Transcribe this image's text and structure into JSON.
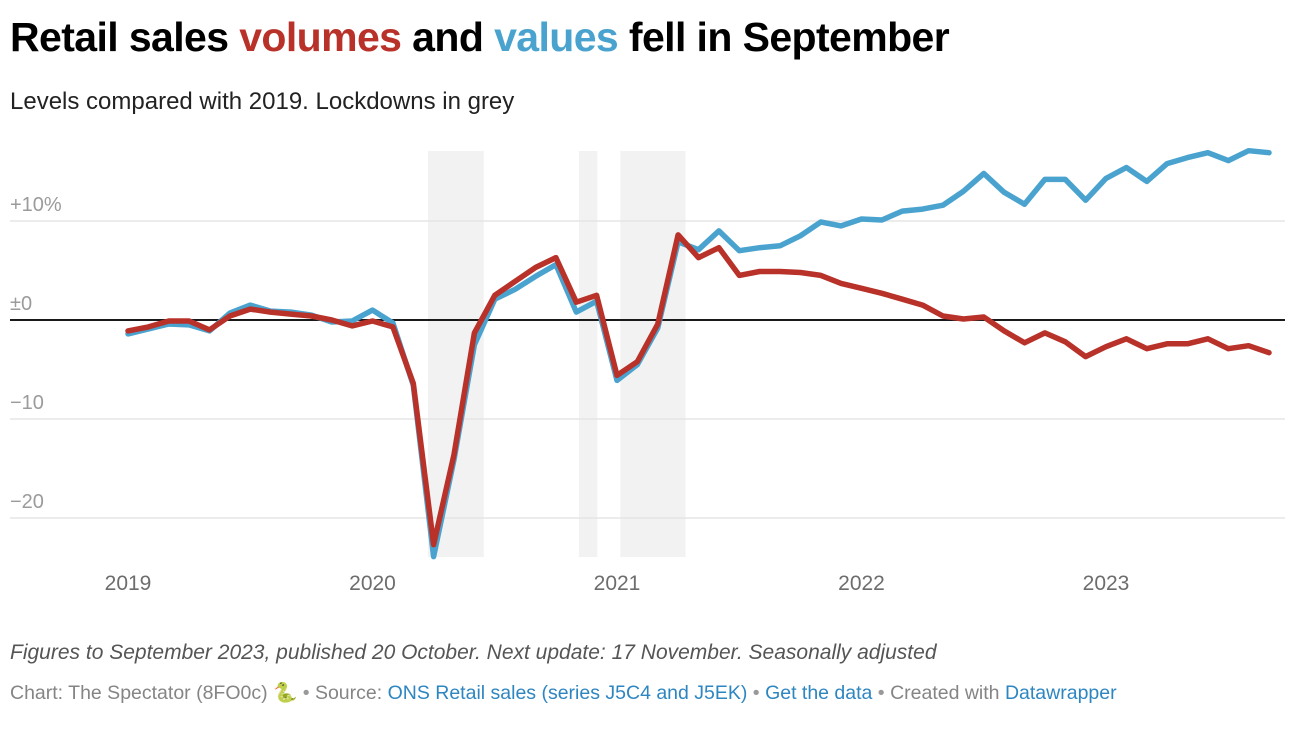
{
  "header": {
    "title_parts": [
      "Retail sales ",
      "volumes",
      " and ",
      "values",
      " fell in September"
    ],
    "subtitle": "Levels compared with 2019. Lockdowns in grey"
  },
  "colors": {
    "volumes": "#b8322a",
    "values": "#4aa3cf",
    "lockdown_shade": "#f2f2f2",
    "zero_line": "#1a1a1a",
    "grid": "#e5e5e5"
  },
  "chart_data": {
    "type": "line",
    "title": "Retail sales volumes and values fell in September",
    "subtitle": "Levels compared with 2019. Lockdowns in grey",
    "xlabel": "",
    "ylabel": "",
    "x_start": "2019-01",
    "x_end": "2023-09",
    "frequency": "monthly",
    "ylim": [
      -25,
      18
    ],
    "y_ticks": [
      {
        "value": 10,
        "label": "+10%"
      },
      {
        "value": 0,
        "label": "±0"
      },
      {
        "value": -10,
        "label": "−10"
      },
      {
        "value": -20,
        "label": "−20"
      }
    ],
    "x_ticks": [
      {
        "value": 2019,
        "label": "2019"
      },
      {
        "value": 2020,
        "label": "2020"
      },
      {
        "value": 2021,
        "label": "2021"
      },
      {
        "value": 2022,
        "label": "2022"
      },
      {
        "value": 2023,
        "label": "2023"
      }
    ],
    "grid": true,
    "legend": "inline in title",
    "lockdowns": [
      {
        "start": "2020-03-23",
        "end": "2020-06-15"
      },
      {
        "start": "2020-11-05",
        "end": "2020-12-02"
      },
      {
        "start": "2021-01-06",
        "end": "2021-04-12"
      }
    ],
    "series": [
      {
        "name": "values",
        "color": "#4aa3cf",
        "values": [
          -1.4,
          -0.9,
          -0.4,
          -0.5,
          -1.1,
          0.7,
          1.5,
          0.9,
          0.8,
          0.5,
          -0.2,
          -0.1,
          1.0,
          -0.3,
          -6.6,
          -23.9,
          -14.1,
          -2.5,
          2.1,
          3.1,
          4.4,
          5.6,
          0.8,
          1.9,
          -6.1,
          -4.5,
          -0.8,
          7.9,
          7.1,
          9.0,
          7.0,
          7.3,
          7.5,
          8.5,
          9.9,
          9.5,
          10.2,
          10.1,
          11.0,
          11.2,
          11.6,
          13.0,
          14.8,
          12.9,
          11.7,
          14.2,
          14.2,
          12.1,
          14.3,
          15.4,
          14.0,
          15.8,
          16.4,
          16.9,
          16.1,
          17.1,
          16.9
        ]
      },
      {
        "name": "volumes",
        "color": "#b8322a",
        "values": [
          -1.1,
          -0.7,
          -0.1,
          -0.1,
          -1.0,
          0.4,
          1.1,
          0.8,
          0.6,
          0.4,
          0.0,
          -0.6,
          -0.1,
          -0.7,
          -6.4,
          -22.7,
          -13.6,
          -1.3,
          2.5,
          3.9,
          5.3,
          6.3,
          1.8,
          2.5,
          -5.6,
          -4.2,
          -0.4,
          8.6,
          6.3,
          7.3,
          4.5,
          4.9,
          4.9,
          4.8,
          4.5,
          3.7,
          3.2,
          2.7,
          2.1,
          1.5,
          0.4,
          0.1,
          0.3,
          -1.1,
          -2.3,
          -1.3,
          -2.2,
          -3.7,
          -2.7,
          -1.9,
          -2.9,
          -2.4,
          -2.4,
          -1.9,
          -2.9,
          -2.6,
          -3.3
        ]
      }
    ]
  },
  "footer": {
    "notes": "Figures to September 2023, published 20 October. Next update: 17 November. Seasonally adjusted",
    "chart_credit": "Chart: The Spectator (8FO0c)",
    "emoji": "🐍",
    "bullet": " • ",
    "source_label": "Source: ",
    "source_link": "ONS Retail sales (series J5C4 and J5EK)",
    "get_data_link": "Get the data",
    "created_label": "Created with ",
    "datawrapper_link": "Datawrapper"
  }
}
